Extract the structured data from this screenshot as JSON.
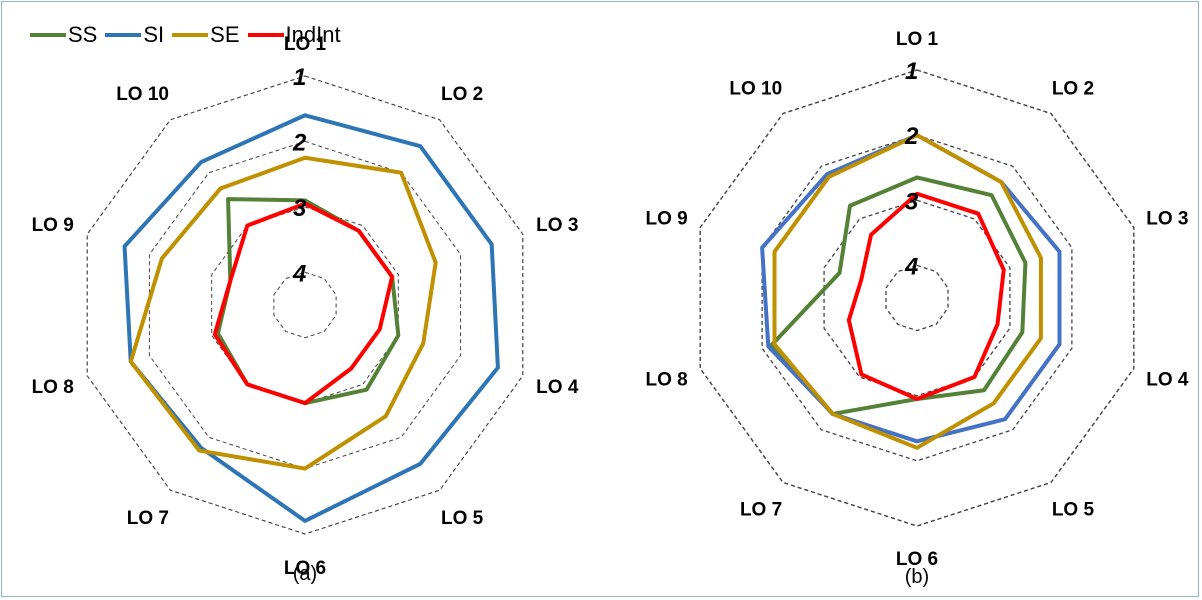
{
  "legend": {
    "items": [
      {
        "label": "SS",
        "color": "#538135"
      },
      {
        "label": "SI",
        "color": "#2e75b6"
      },
      {
        "label": "SE",
        "color": "#bf9000"
      },
      {
        "label": "IndInt",
        "color": "#ff0000"
      }
    ]
  },
  "chart_data": [
    {
      "type": "radar",
      "caption": "(a)",
      "axes": [
        "LO 1",
        "LO 2",
        "LO 3",
        "LO 4",
        "LO 5",
        "LO 6",
        "LO 7",
        "LO 8",
        "LO 9",
        "LO 10"
      ],
      "rings": [
        "1",
        "2",
        "3",
        "4"
      ],
      "scale": {
        "min": 1,
        "max": 4.5,
        "reversed": true
      },
      "grid": "dashed",
      "series": [
        {
          "name": "SS",
          "color": "#538135",
          "values": [
            2.9,
            3.1,
            3.1,
            3.0,
            2.9,
            3.0,
            3.0,
            3.1,
            3.3,
            2.5
          ]
        },
        {
          "name": "SI",
          "color": "#2e75b6",
          "values": [
            1.6,
            1.5,
            1.5,
            1.4,
            1.5,
            1.2,
            1.8,
            1.7,
            1.6,
            1.8
          ]
        },
        {
          "name": "SE",
          "color": "#bf9000",
          "values": [
            2.25,
            2.0,
            2.4,
            2.6,
            2.4,
            2.0,
            1.75,
            1.7,
            2.2,
            2.3
          ]
        },
        {
          "name": "IndInt",
          "color": "#ff0000",
          "values": [
            2.95,
            3.1,
            3.1,
            3.3,
            3.3,
            3.0,
            3.0,
            3.05,
            3.3,
            3.0
          ]
        }
      ]
    },
    {
      "type": "radar",
      "caption": "(b)",
      "axes": [
        "LO 1",
        "LO 2",
        "LO 3",
        "LO 4",
        "LO 5",
        "LO 6",
        "LO 7",
        "LO 8",
        "LO 9",
        "LO 10"
      ],
      "rings": [
        "1",
        "2",
        "3",
        "4"
      ],
      "scale": {
        "min": 1,
        "max": 4.5,
        "reversed": true
      },
      "grid": "dashed",
      "series": [
        {
          "name": "SS",
          "color": "#538135",
          "values": [
            2.65,
            2.55,
            2.75,
            2.8,
            2.75,
            2.95,
            2.3,
            2.15,
            3.25,
            2.75
          ]
        },
        {
          "name": "SI",
          "color": "#4472c4",
          "values": [
            2.0,
            2.3,
            2.2,
            2.2,
            2.2,
            2.3,
            2.3,
            2.1,
            2.0,
            2.15
          ]
        },
        {
          "name": "SE",
          "color": "#bf9000",
          "values": [
            2.0,
            2.3,
            2.5,
            2.5,
            2.5,
            2.2,
            2.3,
            2.2,
            2.2,
            2.2
          ]
        },
        {
          "name": "IndInt",
          "color": "#ff0000",
          "values": [
            2.9,
            2.9,
            3.1,
            3.2,
            3.0,
            2.95,
            3.05,
            3.4,
            3.6,
            3.3
          ]
        }
      ]
    }
  ]
}
